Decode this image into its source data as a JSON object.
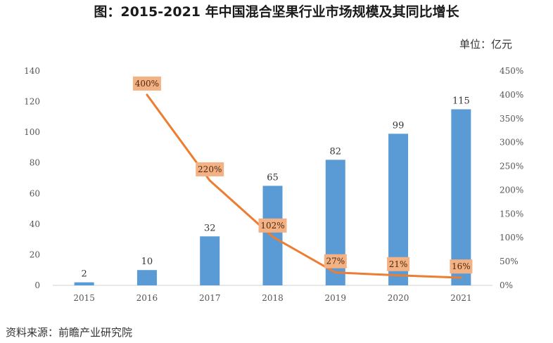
{
  "title": "图：2015-2021 年中国混合坚果行业市场规模及其同比增长",
  "unit": "单位：亿元",
  "source": "资料来源：前瞻产业研究院",
  "chart_data": {
    "type": "bar",
    "categories": [
      "2015",
      "2016",
      "2017",
      "2018",
      "2019",
      "2020",
      "2021"
    ],
    "series": [
      {
        "type": "bar",
        "axis": "left",
        "values": [
          2,
          10,
          32,
          65,
          82,
          99,
          115
        ],
        "color": "#5b9bd5"
      },
      {
        "type": "line",
        "axis": "right",
        "values": [
          null,
          400,
          220,
          102,
          27,
          21,
          16
        ],
        "labels": [
          "",
          "400%",
          "220%",
          "102%",
          "27%",
          "21%",
          "16%"
        ],
        "color": "#ed7d31"
      }
    ],
    "ylim_left": [
      0,
      140
    ],
    "yticks_left": [
      "0",
      "20",
      "40",
      "60",
      "80",
      "100",
      "120",
      "140"
    ],
    "ylim_right": [
      0,
      450
    ],
    "yticks_right": [
      "0%",
      "50%",
      "100%",
      "150%",
      "200%",
      "250%",
      "300%",
      "350%",
      "400%",
      "450%"
    ],
    "grid": false,
    "label_box_color": "#f4b183"
  }
}
